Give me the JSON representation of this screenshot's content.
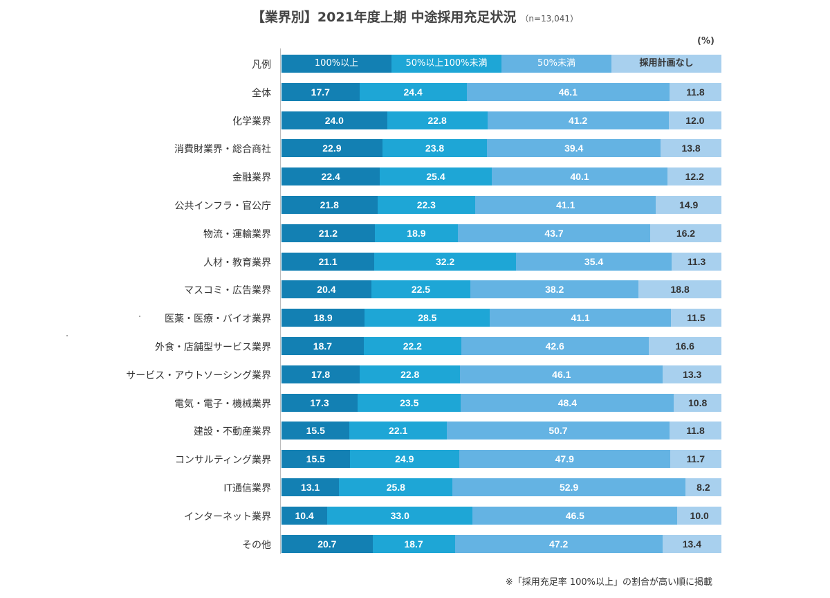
{
  "title": "【業界別】2021年度上期 中途採用充足状況",
  "sample_note": "（n=13,041）",
  "unit_label": "(%)",
  "footnote": "※「採用充足率 100%以上」の割合が高い順に掲載",
  "colors": {
    "s1": "#1380b3",
    "s2": "#1ea6d6",
    "s3": "#64b3e3",
    "s4": "#a8d0ee"
  },
  "chart_data": {
    "type": "bar",
    "orientation": "horizontal",
    "stacked": true,
    "title": "【業界別】2021年度上期 中途採用充足状況",
    "xlim": [
      0,
      100
    ],
    "legend_row_label": "凡例",
    "series_names": [
      "100%以上",
      "50%以上100%未満",
      "50%未満",
      "採用計画なし"
    ],
    "categories": [
      "全体",
      "化学業界",
      "消費財業界・総合商社",
      "金融業界",
      "公共インフラ・官公庁",
      "物流・運輸業界",
      "人材・教育業界",
      "マスコミ・広告業界",
      "医薬・医療・バイオ業界",
      "外食・店舗型サービス業界",
      "サービス・アウトソーシング業界",
      "電気・電子・機械業界",
      "建設・不動産業界",
      "コンサルティング業界",
      "IT通信業界",
      "インターネット業界",
      "その他"
    ],
    "rows": [
      [
        "17.7",
        "24.4",
        "46.1",
        "11.8"
      ],
      [
        "24.0",
        "22.8",
        "41.2",
        "12.0"
      ],
      [
        "22.9",
        "23.8",
        "39.4",
        "13.8"
      ],
      [
        "22.4",
        "25.4",
        "40.1",
        "12.2"
      ],
      [
        "21.8",
        "22.3",
        "41.1",
        "14.9"
      ],
      [
        "21.2",
        "18.9",
        "43.7",
        "16.2"
      ],
      [
        "21.1",
        "32.2",
        "35.4",
        "11.3"
      ],
      [
        "20.4",
        "22.5",
        "38.2",
        "18.8"
      ],
      [
        "18.9",
        "28.5",
        "41.1",
        "11.5"
      ],
      [
        "18.7",
        "22.2",
        "42.6",
        "16.6"
      ],
      [
        "17.8",
        "22.8",
        "46.1",
        "13.3"
      ],
      [
        "17.3",
        "23.5",
        "48.4",
        "10.8"
      ],
      [
        "15.5",
        "22.1",
        "50.7",
        "11.8"
      ],
      [
        "15.5",
        "24.9",
        "47.9",
        "11.7"
      ],
      [
        "13.1",
        "25.8",
        "52.9",
        "8.2"
      ],
      [
        "10.4",
        "33.0",
        "46.5",
        "10.0"
      ],
      [
        "20.7",
        "18.7",
        "47.2",
        "13.4"
      ]
    ]
  }
}
